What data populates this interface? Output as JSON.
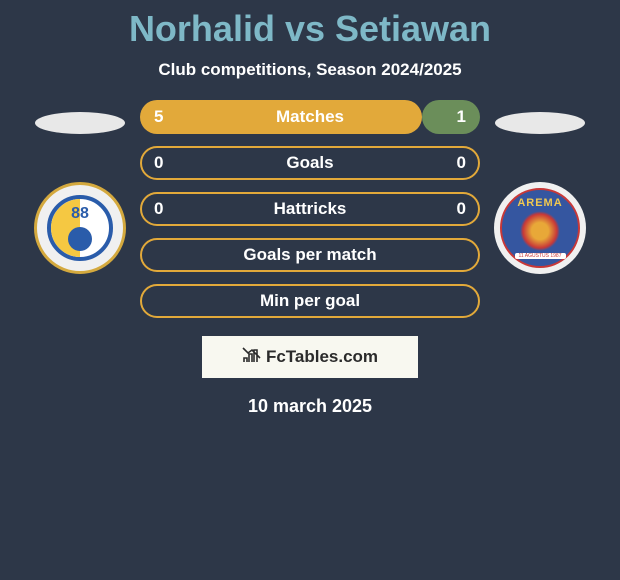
{
  "header": {
    "title": "Norhalid vs Setiawan",
    "subtitle": "Club competitions, Season 2024/2025"
  },
  "colors": {
    "background": "#2d3748",
    "title_color": "#7eb8c7",
    "left_bar": "#e2a93a",
    "right_bar": "#6b8e5a",
    "outline_bar": "#e2a93a",
    "text": "#ffffff",
    "watermark_bg": "#f8f8f0",
    "watermark_text": "#2b2b2b"
  },
  "player_left": {
    "badge_number": "88",
    "badge_border": "#d4a93e",
    "badge_inner_border": "#2a5caa",
    "badge_accent": "#f5c842"
  },
  "player_right": {
    "badge_text_top": "AREMA",
    "badge_text_bottom": "11 AGUSTUS 1987",
    "badge_bg": "#3556a0",
    "badge_ring": "#c73838",
    "badge_text_color": "#f0c850"
  },
  "stats": [
    {
      "label": "Matches",
      "left_val": "5",
      "right_val": "1",
      "left_pct": 83,
      "right_pct": 17,
      "type": "split"
    },
    {
      "label": "Goals",
      "left_val": "0",
      "right_val": "0",
      "left_pct": 0,
      "right_pct": 0,
      "type": "outline"
    },
    {
      "label": "Hattricks",
      "left_val": "0",
      "right_val": "0",
      "left_pct": 0,
      "right_pct": 0,
      "type": "outline"
    },
    {
      "label": "Goals per match",
      "left_val": "",
      "right_val": "",
      "left_pct": 0,
      "right_pct": 0,
      "type": "outline"
    },
    {
      "label": "Min per goal",
      "left_val": "",
      "right_val": "",
      "left_pct": 0,
      "right_pct": 0,
      "type": "outline"
    }
  ],
  "watermark": {
    "text": "FcTables.com"
  },
  "footer": {
    "date": "10 march 2025"
  },
  "typography": {
    "title_fontsize": 36,
    "subtitle_fontsize": 17,
    "stat_label_fontsize": 17,
    "date_fontsize": 18
  }
}
